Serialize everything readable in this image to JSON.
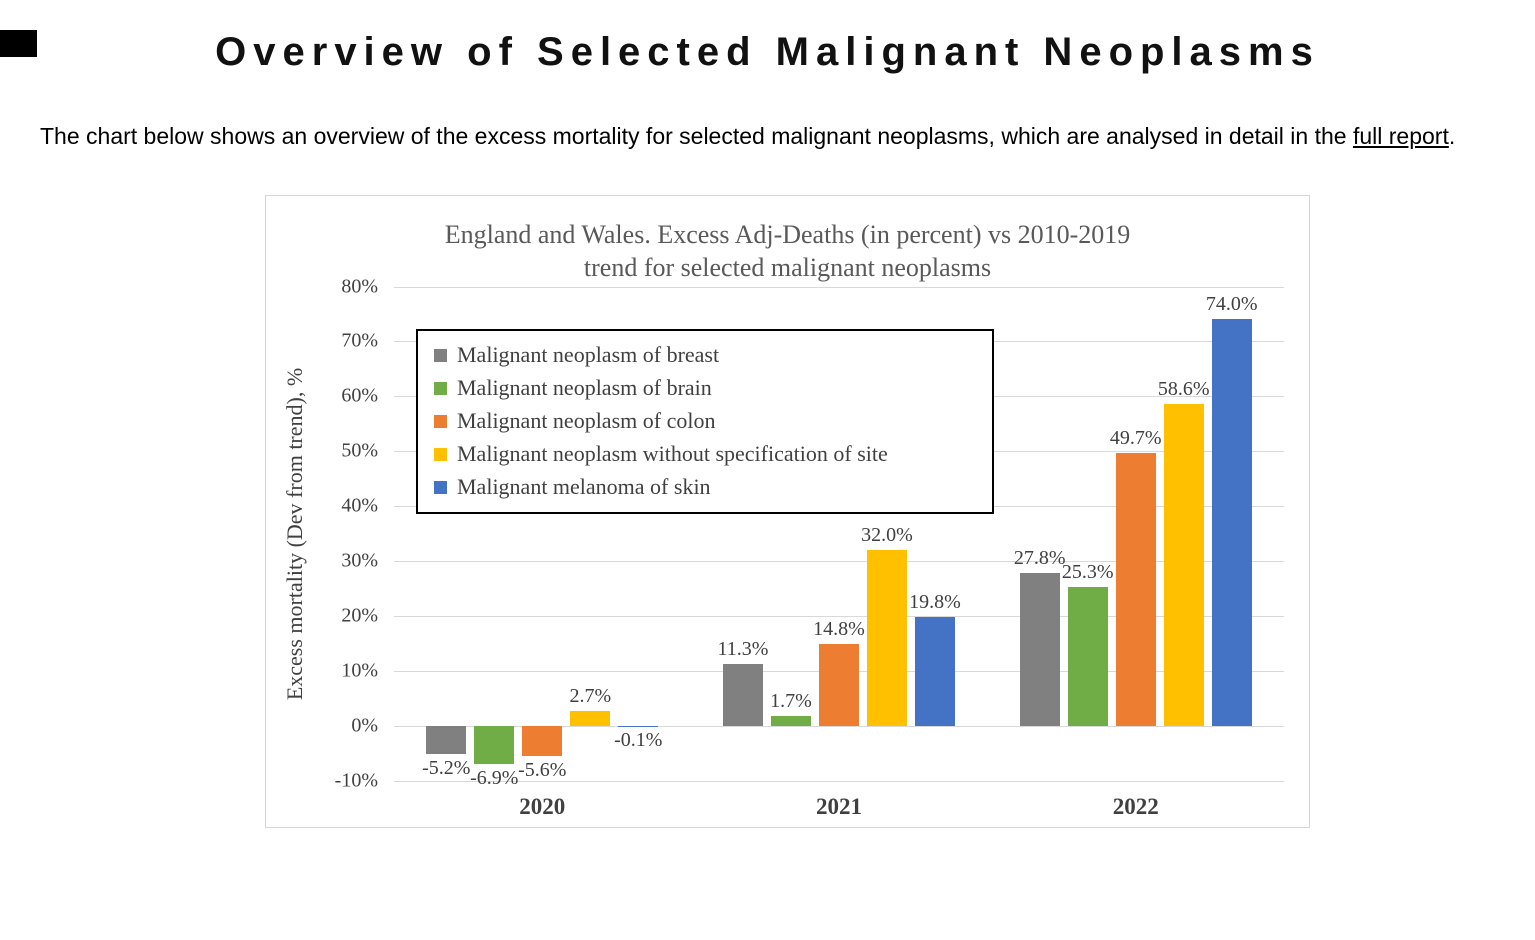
{
  "page": {
    "title": "Overview of Selected Malignant Neoplasms",
    "intro_before_link": "The chart below shows an overview of the excess mortality for selected malignant neoplasms, which are analysed in detail in the ",
    "link_text": "full report",
    "intro_after_link": "."
  },
  "chart_data": {
    "type": "bar",
    "title_line1": "England and Wales. Excess Adj-Deaths (in percent) vs 2010-2019",
    "title_line2": "trend for selected malignant neoplasms",
    "ylabel": "Excess mortality (Dev from trend), %",
    "ylim": [
      -10,
      80
    ],
    "ytick_step": 10,
    "yticks": [
      "80%",
      "70%",
      "60%",
      "50%",
      "40%",
      "30%",
      "20%",
      "10%",
      "0%",
      "-10%"
    ],
    "grid": true,
    "legend_position": "inside-top-left",
    "categories": [
      "2020",
      "2021",
      "2022"
    ],
    "series": [
      {
        "name": "Malignant neoplasm of breast",
        "color": "#808080",
        "values": [
          -5.2,
          11.3,
          27.8
        ],
        "labels": [
          "-5.2%",
          "11.3%",
          "27.8%"
        ]
      },
      {
        "name": "Malignant neoplasm of brain",
        "color": "#70AD47",
        "values": [
          -6.9,
          1.7,
          25.3
        ],
        "labels": [
          "-6.9%",
          "1.7%",
          "25.3%"
        ]
      },
      {
        "name": "Malignant neoplasm of colon",
        "color": "#ED7D31",
        "values": [
          -5.6,
          14.8,
          49.7
        ],
        "labels": [
          "-5.6%",
          "14.8%",
          "49.7%"
        ]
      },
      {
        "name": "Malignant neoplasm without specification of site",
        "color": "#FFC000",
        "values": [
          2.7,
          32.0,
          58.6
        ],
        "labels": [
          "2.7%",
          "32.0%",
          "58.6%"
        ]
      },
      {
        "name": "Malignant melanoma of skin",
        "color": "#4472C4",
        "values": [
          -0.1,
          19.8,
          74.0
        ],
        "labels": [
          "-0.1%",
          "19.8%",
          "74.0%"
        ]
      }
    ]
  }
}
